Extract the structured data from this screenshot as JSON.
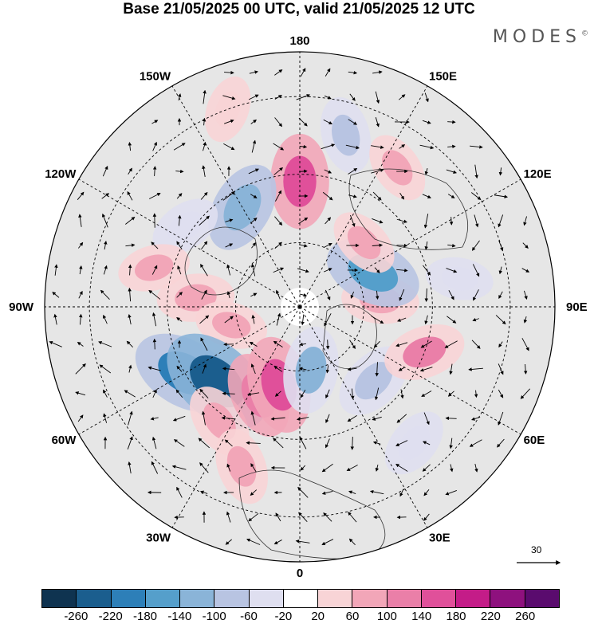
{
  "title": "Base 21/05/2025 00 UTC, valid 21/05/2025 12 UTC",
  "brand": "MODES",
  "brand_mark": "©",
  "map": {
    "projection": "north-polar-stereographic",
    "longitude_labels": [
      {
        "text": "180",
        "lon": 180
      },
      {
        "text": "150E",
        "lon": 150
      },
      {
        "text": "120E",
        "lon": 120
      },
      {
        "text": "90E",
        "lon": 90
      },
      {
        "text": "60E",
        "lon": 60
      },
      {
        "text": "30E",
        "lon": 30
      },
      {
        "text": "0",
        "lon": 0
      },
      {
        "text": "30W",
        "lon": -30
      },
      {
        "text": "60W",
        "lon": -60
      },
      {
        "text": "90W",
        "lon": -90
      },
      {
        "text": "120W",
        "lon": -120
      },
      {
        "text": "150W",
        "lon": -150
      }
    ],
    "latitude_circles": [
      30,
      50,
      70
    ],
    "wind_reference_vector": "30",
    "anomaly_cells": [
      {
        "lon": 180,
        "lat": 52,
        "value": 150,
        "sign": "pos"
      },
      {
        "lon": 165,
        "lat": 38,
        "value": -80
      },
      {
        "lon": -160,
        "lat": 30,
        "value": 40
      },
      {
        "lon": 145,
        "lat": 40,
        "value": 60
      },
      {
        "lon": -150,
        "lat": 55,
        "value": -140
      },
      {
        "lon": -125,
        "lat": 48,
        "value": -60
      },
      {
        "lon": -105,
        "lat": 45,
        "value": 60
      },
      {
        "lon": -95,
        "lat": 58,
        "value": 80
      },
      {
        "lon": -75,
        "lat": 68,
        "value": 60
      },
      {
        "lon": -60,
        "lat": 50,
        "value": -200
      },
      {
        "lon": -48,
        "lat": 56,
        "value": -240
      },
      {
        "lon": -35,
        "lat": 48,
        "value": 80
      },
      {
        "lon": -25,
        "lat": 60,
        "value": 120
      },
      {
        "lon": -15,
        "lat": 65,
        "value": 160
      },
      {
        "lon": 10,
        "lat": 70,
        "value": -120
      },
      {
        "lon": 45,
        "lat": 58,
        "value": -100
      },
      {
        "lon": 70,
        "lat": 50,
        "value": 100
      },
      {
        "lon": 95,
        "lat": 65,
        "value": 80
      },
      {
        "lon": 115,
        "lat": 65,
        "value": -160
      },
      {
        "lon": 135,
        "lat": 62,
        "value": 60
      },
      {
        "lon": 100,
        "lat": 42,
        "value": -40
      },
      {
        "lon": 40,
        "lat": 38,
        "value": -60
      },
      {
        "lon": -20,
        "lat": 40,
        "value": 80
      }
    ]
  },
  "legend": {
    "colors": [
      "#0f3350",
      "#1b5e8e",
      "#2d7fb8",
      "#559fcb",
      "#8ab4d8",
      "#b8c4e2",
      "#dfdff0",
      "#ffffff",
      "#f8d4d6",
      "#f2a6b8",
      "#ea7fa8",
      "#e0509a",
      "#c41c88",
      "#8e117e",
      "#5a0b6e"
    ],
    "ticks": [
      "-260",
      "-220",
      "-180",
      "-140",
      "-100",
      "-60",
      "-20",
      "20",
      "60",
      "100",
      "140",
      "180",
      "220",
      "260"
    ]
  }
}
